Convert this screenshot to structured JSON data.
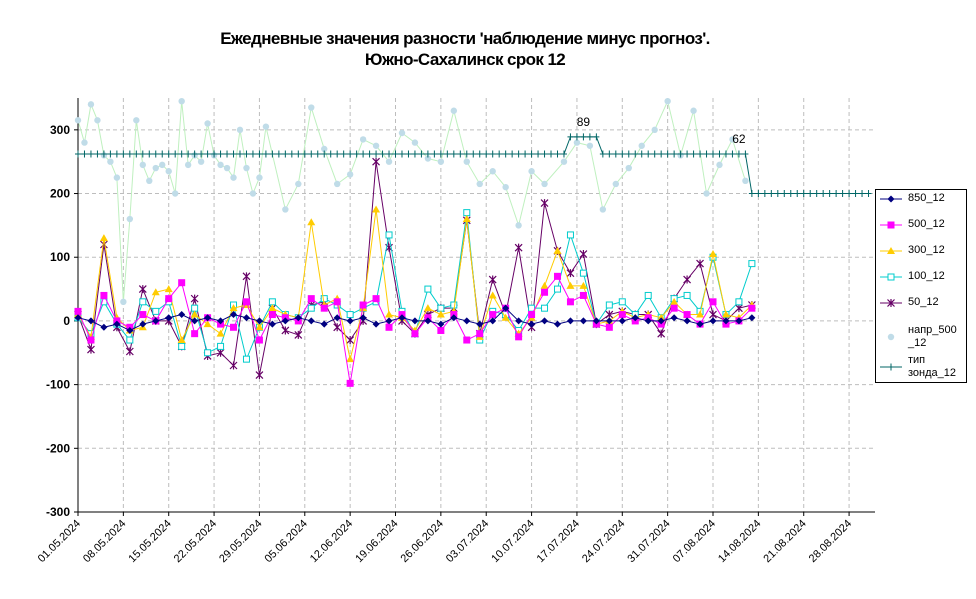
{
  "title_line1": "Ежедневные значения разности 'наблюдение минус прогноз'.",
  "title_line2": "Южно-Сахалинск      срок 12",
  "chart_data": {
    "type": "line",
    "title": "Ежедневные значения разности 'наблюдение минус прогноз'. Южно-Сахалинск срок 12",
    "x_start": "2024-05-01",
    "x_end": "2024-09-01",
    "ylim": [
      -300,
      350
    ],
    "yticks": [
      -300,
      -200,
      -100,
      0,
      100,
      200,
      300
    ],
    "grid": true,
    "legend_position": "right",
    "xtick_labels": [
      "01.05.2024",
      "08.05.2024",
      "15.05.2024",
      "22.05.2024",
      "29.05.2024",
      "05.06.2024",
      "12.06.2024",
      "19.06.2024",
      "26.06.2024",
      "03.07.2024",
      "10.07.2024",
      "17.07.2024",
      "24.07.2024",
      "31.07.2024",
      "07.08.2024",
      "14.08.2024",
      "21.08.2024",
      "28.08.2024"
    ],
    "annotations": [
      {
        "text": "89",
        "x": "2024-07-18",
        "y": 300
      },
      {
        "text": "62",
        "x": "2024-08-11",
        "y": 273
      }
    ],
    "series": [
      {
        "name": "850_12",
        "color": "#000080",
        "marker": "diamond",
        "line": true,
        "x": [
          "2024-05-01",
          "2024-05-03",
          "2024-05-05",
          "2024-05-07",
          "2024-05-09",
          "2024-05-11",
          "2024-05-13",
          "2024-05-15",
          "2024-05-17",
          "2024-05-19",
          "2024-05-21",
          "2024-05-23",
          "2024-05-25",
          "2024-05-27",
          "2024-05-29",
          "2024-05-31",
          "2024-06-02",
          "2024-06-04",
          "2024-06-06",
          "2024-06-08",
          "2024-06-10",
          "2024-06-12",
          "2024-06-14",
          "2024-06-16",
          "2024-06-18",
          "2024-06-20",
          "2024-06-22",
          "2024-06-24",
          "2024-06-26",
          "2024-06-28",
          "2024-06-30",
          "2024-07-02",
          "2024-07-04",
          "2024-07-06",
          "2024-07-08",
          "2024-07-10",
          "2024-07-12",
          "2024-07-14",
          "2024-07-16",
          "2024-07-18",
          "2024-07-20",
          "2024-07-22",
          "2024-07-24",
          "2024-07-26",
          "2024-07-28",
          "2024-07-30",
          "2024-08-01",
          "2024-08-03",
          "2024-08-05",
          "2024-08-07",
          "2024-08-09",
          "2024-08-11",
          "2024-08-13"
        ],
        "y": [
          5,
          0,
          -10,
          -5,
          -15,
          -5,
          0,
          5,
          10,
          0,
          5,
          0,
          10,
          5,
          0,
          -5,
          0,
          5,
          0,
          -5,
          5,
          0,
          5,
          -5,
          0,
          5,
          0,
          0,
          -5,
          5,
          0,
          -5,
          0,
          20,
          0,
          -5,
          0,
          -5,
          0,
          0,
          0,
          0,
          0,
          5,
          0,
          0,
          5,
          0,
          -5,
          0,
          0,
          0,
          5
        ]
      },
      {
        "name": "500_12",
        "color": "#ff00ff",
        "marker": "square",
        "line": true,
        "x": [
          "2024-05-01",
          "2024-05-03",
          "2024-05-05",
          "2024-05-07",
          "2024-05-09",
          "2024-05-11",
          "2024-05-13",
          "2024-05-15",
          "2024-05-17",
          "2024-05-19",
          "2024-05-21",
          "2024-05-23",
          "2024-05-25",
          "2024-05-27",
          "2024-05-29",
          "2024-05-31",
          "2024-06-02",
          "2024-06-04",
          "2024-06-06",
          "2024-06-08",
          "2024-06-10",
          "2024-06-12",
          "2024-06-14",
          "2024-06-16",
          "2024-06-18",
          "2024-06-20",
          "2024-06-22",
          "2024-06-24",
          "2024-06-26",
          "2024-06-28",
          "2024-06-30",
          "2024-07-02",
          "2024-07-04",
          "2024-07-06",
          "2024-07-08",
          "2024-07-10",
          "2024-07-12",
          "2024-07-14",
          "2024-07-16",
          "2024-07-18",
          "2024-07-20",
          "2024-07-22",
          "2024-07-24",
          "2024-07-26",
          "2024-07-28",
          "2024-07-30",
          "2024-08-01",
          "2024-08-03",
          "2024-08-05",
          "2024-08-07",
          "2024-08-09",
          "2024-08-11",
          "2024-08-13"
        ],
        "y": [
          15,
          -30,
          40,
          0,
          -10,
          10,
          0,
          35,
          60,
          -20,
          5,
          -5,
          -10,
          30,
          -30,
          10,
          5,
          0,
          35,
          20,
          30,
          -98,
          25,
          35,
          -10,
          10,
          -20,
          5,
          -15,
          10,
          -30,
          -20,
          10,
          20,
          -25,
          10,
          45,
          70,
          30,
          40,
          -5,
          -10,
          10,
          0,
          5,
          -5,
          20,
          10,
          -5,
          30,
          -5,
          0,
          20
        ]
      },
      {
        "name": "300_12",
        "color": "#ffcc00",
        "marker": "triangle",
        "line": true,
        "x": [
          "2024-05-01",
          "2024-05-03",
          "2024-05-05",
          "2024-05-07",
          "2024-05-09",
          "2024-05-11",
          "2024-05-13",
          "2024-05-15",
          "2024-05-17",
          "2024-05-19",
          "2024-05-21",
          "2024-05-23",
          "2024-05-25",
          "2024-05-27",
          "2024-05-29",
          "2024-05-31",
          "2024-06-02",
          "2024-06-04",
          "2024-06-06",
          "2024-06-08",
          "2024-06-10",
          "2024-06-12",
          "2024-06-14",
          "2024-06-16",
          "2024-06-18",
          "2024-06-20",
          "2024-06-22",
          "2024-06-24",
          "2024-06-26",
          "2024-06-28",
          "2024-06-30",
          "2024-07-02",
          "2024-07-04",
          "2024-07-06",
          "2024-07-08",
          "2024-07-10",
          "2024-07-12",
          "2024-07-14",
          "2024-07-16",
          "2024-07-18",
          "2024-07-20",
          "2024-07-22",
          "2024-07-24",
          "2024-07-26",
          "2024-07-28",
          "2024-07-30",
          "2024-08-01",
          "2024-08-03",
          "2024-08-05",
          "2024-08-07",
          "2024-08-09",
          "2024-08-11",
          "2024-08-13"
        ],
        "y": [
          10,
          -25,
          130,
          5,
          -15,
          -10,
          45,
          50,
          -30,
          10,
          -5,
          -20,
          20,
          25,
          -10,
          20,
          10,
          5,
          155,
          25,
          35,
          -60,
          20,
          175,
          10,
          5,
          -15,
          20,
          10,
          15,
          160,
          -25,
          40,
          5,
          -20,
          5,
          55,
          110,
          55,
          55,
          -5,
          0,
          15,
          5,
          10,
          5,
          30,
          10,
          10,
          105,
          10,
          5,
          25
        ]
      },
      {
        "name": "100_12",
        "color": "#00cccc",
        "marker": "square-open",
        "line": true,
        "x": [
          "2024-05-01",
          "2024-05-03",
          "2024-05-05",
          "2024-05-07",
          "2024-05-09",
          "2024-05-11",
          "2024-05-13",
          "2024-05-15",
          "2024-05-17",
          "2024-05-19",
          "2024-05-21",
          "2024-05-23",
          "2024-05-25",
          "2024-05-27",
          "2024-05-29",
          "2024-05-31",
          "2024-06-02",
          "2024-06-04",
          "2024-06-06",
          "2024-06-08",
          "2024-06-10",
          "2024-06-12",
          "2024-06-14",
          "2024-06-16",
          "2024-06-18",
          "2024-06-20",
          "2024-06-22",
          "2024-06-24",
          "2024-06-26",
          "2024-06-28",
          "2024-06-30",
          "2024-07-02",
          "2024-07-04",
          "2024-07-06",
          "2024-07-08",
          "2024-07-10",
          "2024-07-12",
          "2024-07-14",
          "2024-07-16",
          "2024-07-18",
          "2024-07-20",
          "2024-07-22",
          "2024-07-24",
          "2024-07-26",
          "2024-07-28",
          "2024-07-30",
          "2024-08-01",
          "2024-08-03",
          "2024-08-05",
          "2024-08-07",
          "2024-08-09",
          "2024-08-11",
          "2024-08-13"
        ],
        "y": [
          5,
          -20,
          30,
          -5,
          -30,
          30,
          15,
          30,
          -40,
          20,
          -50,
          -40,
          25,
          -60,
          -10,
          30,
          10,
          5,
          20,
          35,
          25,
          10,
          20,
          30,
          135,
          15,
          -20,
          50,
          20,
          25,
          170,
          -30,
          15,
          10,
          -15,
          20,
          20,
          50,
          135,
          75,
          -5,
          25,
          30,
          10,
          40,
          5,
          35,
          40,
          15,
          100,
          10,
          30,
          90
        ]
      },
      {
        "name": "50_12",
        "color": "#660066",
        "marker": "star",
        "line": true,
        "x": [
          "2024-05-01",
          "2024-05-03",
          "2024-05-05",
          "2024-05-07",
          "2024-05-09",
          "2024-05-11",
          "2024-05-13",
          "2024-05-15",
          "2024-05-17",
          "2024-05-19",
          "2024-05-21",
          "2024-05-23",
          "2024-05-25",
          "2024-05-27",
          "2024-05-29",
          "2024-05-31",
          "2024-06-02",
          "2024-06-04",
          "2024-06-06",
          "2024-06-08",
          "2024-06-10",
          "2024-06-12",
          "2024-06-14",
          "2024-06-16",
          "2024-06-18",
          "2024-06-20",
          "2024-06-22",
          "2024-06-24",
          "2024-06-26",
          "2024-06-28",
          "2024-06-30",
          "2024-07-02",
          "2024-07-04",
          "2024-07-06",
          "2024-07-08",
          "2024-07-10",
          "2024-07-12",
          "2024-07-14",
          "2024-07-16",
          "2024-07-18",
          "2024-07-20",
          "2024-07-22",
          "2024-07-24",
          "2024-07-26",
          "2024-07-28",
          "2024-07-30",
          "2024-08-01",
          "2024-08-03",
          "2024-08-05",
          "2024-08-07",
          "2024-08-09",
          "2024-08-11",
          "2024-08-13"
        ],
        "y": [
          10,
          -45,
          120,
          -10,
          -48,
          50,
          0,
          0,
          -40,
          35,
          -55,
          -50,
          -70,
          70,
          -85,
          20,
          -15,
          -22,
          25,
          30,
          -10,
          -30,
          0,
          250,
          115,
          0,
          -20,
          10,
          20,
          20,
          158,
          -20,
          65,
          10,
          115,
          -10,
          185,
          110,
          75,
          105,
          -5,
          10,
          15,
          10,
          10,
          -20,
          35,
          65,
          90,
          10,
          0,
          20,
          25
        ]
      },
      {
        "name": "напр_500_12",
        "color": "#c0dce8",
        "marker": "circle",
        "line": false,
        "line_color": "#bff0bf",
        "x": [
          "2024-05-01",
          "2024-05-02",
          "2024-05-03",
          "2024-05-04",
          "2024-05-05",
          "2024-05-06",
          "2024-05-07",
          "2024-05-08",
          "2024-05-09",
          "2024-05-10",
          "2024-05-11",
          "2024-05-12",
          "2024-05-13",
          "2024-05-14",
          "2024-05-15",
          "2024-05-16",
          "2024-05-17",
          "2024-05-18",
          "2024-05-19",
          "2024-05-20",
          "2024-05-21",
          "2024-05-22",
          "2024-05-23",
          "2024-05-24",
          "2024-05-25",
          "2024-05-26",
          "2024-05-27",
          "2024-05-28",
          "2024-05-29",
          "2024-05-30",
          "2024-06-02",
          "2024-06-04",
          "2024-06-06",
          "2024-06-08",
          "2024-06-10",
          "2024-06-12",
          "2024-06-14",
          "2024-06-16",
          "2024-06-18",
          "2024-06-20",
          "2024-06-22",
          "2024-06-24",
          "2024-06-26",
          "2024-06-28",
          "2024-06-30",
          "2024-07-02",
          "2024-07-04",
          "2024-07-06",
          "2024-07-08",
          "2024-07-10",
          "2024-07-12",
          "2024-07-15",
          "2024-07-17",
          "2024-07-19",
          "2024-07-21",
          "2024-07-23",
          "2024-07-25",
          "2024-07-27",
          "2024-07-29",
          "2024-07-31",
          "2024-08-02",
          "2024-08-04",
          "2024-08-06",
          "2024-08-08",
          "2024-08-10",
          "2024-08-12"
        ],
        "y": [
          315,
          280,
          340,
          315,
          260,
          250,
          225,
          30,
          160,
          315,
          245,
          220,
          240,
          245,
          235,
          200,
          345,
          245,
          260,
          250,
          310,
          260,
          245,
          240,
          225,
          300,
          240,
          200,
          225,
          305,
          175,
          215,
          335,
          270,
          215,
          230,
          285,
          275,
          250,
          295,
          280,
          255,
          250,
          330,
          250,
          215,
          235,
          210,
          150,
          235,
          215,
          250,
          280,
          275,
          175,
          215,
          240,
          275,
          300,
          345,
          260,
          330,
          200,
          245,
          285,
          220
        ]
      },
      {
        "name": "тип зонда_12",
        "color": "#006666",
        "marker": "plus",
        "line": true,
        "daily": true,
        "x": [
          "2024-05-01",
          "2024-07-15",
          "2024-07-16",
          "2024-07-20",
          "2024-07-21",
          "2024-08-12",
          "2024-08-13",
          "2024-08-31"
        ],
        "y": [
          262,
          262,
          289,
          289,
          262,
          262,
          200,
          200
        ]
      }
    ]
  },
  "legend": [
    {
      "label": "850_12",
      "series": "850_12"
    },
    {
      "label": "500_12",
      "series": "500_12"
    },
    {
      "label": "300_12",
      "series": "300_12"
    },
    {
      "label": "100_12",
      "series": "100_12"
    },
    {
      "label": "50_12",
      "series": "50_12"
    },
    {
      "label": "напр_500\n_12",
      "series": "напр_500_12"
    },
    {
      "label": "тип\nзонда_12",
      "series": "тип зонда_12"
    }
  ]
}
